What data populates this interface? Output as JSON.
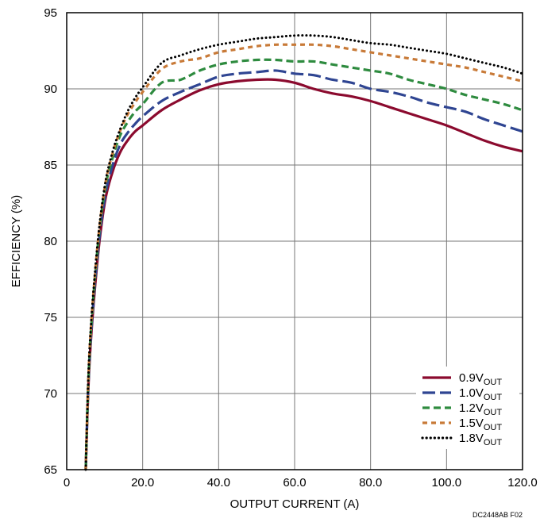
{
  "chart_data": {
    "type": "line",
    "title": "",
    "xlabel": "OUTPUT CURRENT (A)",
    "ylabel": "EFFICIENCY (%)",
    "xlim": [
      0,
      120
    ],
    "ylim": [
      65,
      95
    ],
    "xticks": [
      "0",
      "20.0",
      "40.0",
      "60.0",
      "80.0",
      "100.0",
      "120.0"
    ],
    "yticks": [
      "65",
      "70",
      "75",
      "80",
      "85",
      "90",
      "95"
    ],
    "grid": true,
    "legend_position": "bottom-right",
    "footnote": "DC2448AB F02",
    "series": [
      {
        "name": "0.9V",
        "sub": "OUT",
        "color": "#8b0a2e",
        "dash": "solid",
        "x": [
          5,
          6,
          8,
          10,
          12,
          14,
          16,
          18,
          20,
          25,
          30,
          35,
          40,
          45,
          50,
          55,
          60,
          65,
          70,
          75,
          80,
          85,
          90,
          95,
          100,
          105,
          110,
          115,
          120
        ],
        "y": [
          65,
          72,
          78.5,
          82.5,
          84.5,
          85.8,
          86.6,
          87.2,
          87.6,
          88.6,
          89.3,
          89.9,
          90.3,
          90.5,
          90.6,
          90.6,
          90.4,
          90.0,
          89.7,
          89.5,
          89.2,
          88.8,
          88.4,
          88.0,
          87.6,
          87.1,
          86.6,
          86.2,
          85.9
        ]
      },
      {
        "name": "1.0V",
        "sub": "OUT",
        "color": "#2f4592",
        "dash": "longdash",
        "x": [
          5,
          6,
          8,
          10,
          12,
          14,
          16,
          18,
          20,
          25,
          30,
          35,
          40,
          45,
          50,
          55,
          60,
          65,
          70,
          75,
          80,
          85,
          90,
          95,
          100,
          105,
          110,
          115,
          120
        ],
        "y": [
          65,
          72.2,
          78.8,
          82.8,
          84.9,
          86.3,
          87.1,
          87.7,
          88.2,
          89.2,
          89.8,
          90.3,
          90.8,
          91.0,
          91.1,
          91.2,
          91.0,
          90.9,
          90.6,
          90.4,
          90.0,
          89.8,
          89.5,
          89.1,
          88.8,
          88.5,
          88.0,
          87.6,
          87.2
        ]
      },
      {
        "name": "1.2V",
        "sub": "OUT",
        "color": "#2e8b3f",
        "dash": "dash",
        "x": [
          5,
          6,
          8,
          10,
          12,
          14,
          16,
          18,
          20,
          25,
          30,
          35,
          40,
          45,
          50,
          55,
          60,
          65,
          70,
          75,
          80,
          85,
          90,
          95,
          100,
          105,
          110,
          115,
          120
        ],
        "y": [
          65,
          72.5,
          79.2,
          83.3,
          85.4,
          86.9,
          87.8,
          88.5,
          89.0,
          90.4,
          90.6,
          91.2,
          91.6,
          91.8,
          91.9,
          91.9,
          91.8,
          91.8,
          91.6,
          91.4,
          91.2,
          91.0,
          90.6,
          90.3,
          90.0,
          89.6,
          89.3,
          89.0,
          88.6
        ]
      },
      {
        "name": "1.5V",
        "sub": "OUT",
        "color": "#c87a38",
        "dash": "shortdash",
        "x": [
          5,
          6,
          8,
          10,
          12,
          14,
          16,
          18,
          20,
          25,
          30,
          35,
          40,
          45,
          50,
          55,
          60,
          65,
          70,
          75,
          80,
          85,
          90,
          95,
          100,
          105,
          110,
          115,
          120
        ],
        "y": [
          65,
          72.7,
          79.4,
          83.5,
          85.7,
          87.2,
          88.3,
          89.1,
          89.8,
          91.3,
          91.8,
          92.0,
          92.4,
          92.6,
          92.8,
          92.9,
          92.9,
          92.9,
          92.8,
          92.6,
          92.4,
          92.2,
          92.0,
          91.8,
          91.6,
          91.4,
          91.1,
          90.8,
          90.5
        ]
      },
      {
        "name": "1.8V",
        "sub": "OUT",
        "color": "#000000",
        "dash": "dot",
        "x": [
          5,
          6,
          8,
          10,
          12,
          14,
          16,
          18,
          20,
          25,
          30,
          35,
          40,
          45,
          50,
          55,
          60,
          65,
          70,
          75,
          80,
          85,
          90,
          95,
          100,
          105,
          110,
          115,
          120
        ],
        "y": [
          65,
          72.8,
          79.5,
          83.6,
          85.8,
          87.3,
          88.5,
          89.4,
          90.1,
          91.7,
          92.2,
          92.6,
          92.9,
          93.1,
          93.3,
          93.4,
          93.5,
          93.5,
          93.4,
          93.2,
          93.0,
          92.9,
          92.7,
          92.5,
          92.3,
          92.0,
          91.7,
          91.4,
          91.0
        ]
      }
    ]
  }
}
